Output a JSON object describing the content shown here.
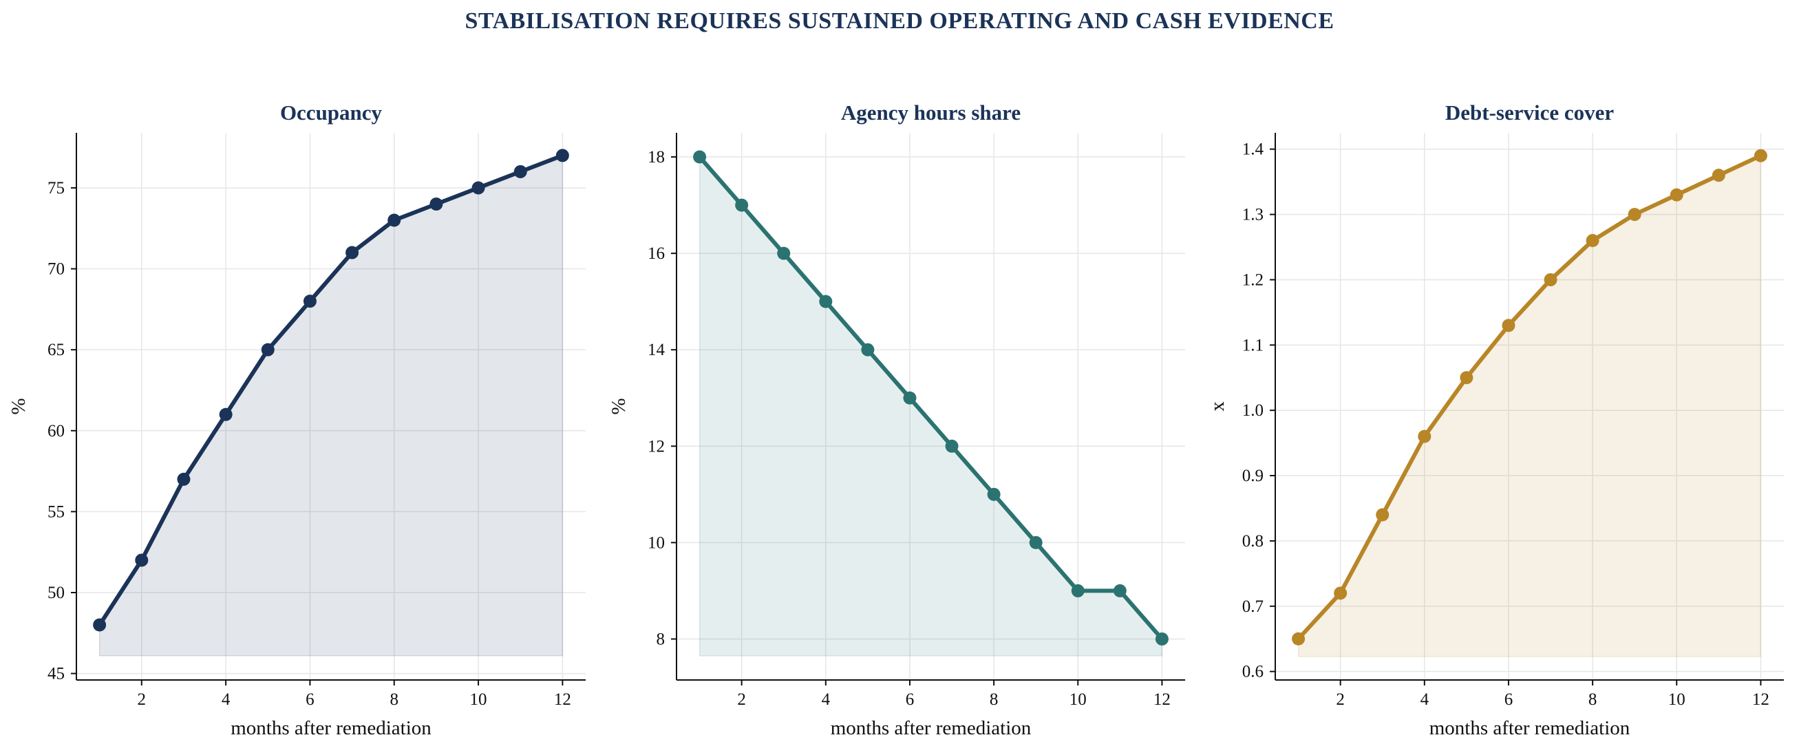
{
  "suptitle": "STABILISATION REQUIRES SUSTAINED OPERATING AND CASH EVIDENCE",
  "colors": {
    "title": "#1b3358",
    "grid": "#e6e6e6",
    "axis": "#111111"
  },
  "chart_data": [
    {
      "type": "area",
      "title": "Occupancy",
      "xlabel": "months after remediation",
      "ylabel": "%",
      "color": "#1b3358",
      "x": [
        1,
        2,
        3,
        4,
        5,
        6,
        7,
        8,
        9,
        10,
        11,
        12
      ],
      "values": [
        48,
        52,
        57,
        61,
        65,
        68,
        71,
        73,
        74,
        75,
        76,
        77
      ],
      "fill_baseline": 46.1,
      "xlim": [
        0.45,
        12.55
      ],
      "ylim": [
        44.6,
        78.4
      ],
      "xticks": [
        2,
        4,
        6,
        8,
        10,
        12
      ],
      "yticks": [
        45,
        50,
        55,
        60,
        65,
        70,
        75
      ],
      "ytick_labels": [
        "45",
        "50",
        "55",
        "60",
        "65",
        "70",
        "75"
      ],
      "grid": true
    },
    {
      "type": "area",
      "title": "Agency hours share",
      "xlabel": "months after remediation",
      "ylabel": "%",
      "color": "#2b7371",
      "x": [
        1,
        2,
        3,
        4,
        5,
        6,
        7,
        8,
        9,
        10,
        11,
        12
      ],
      "values": [
        18,
        17,
        16,
        15,
        14,
        13,
        12,
        11,
        10,
        9,
        9,
        8
      ],
      "fill_baseline": 7.65,
      "xlim": [
        0.45,
        12.55
      ],
      "ylim": [
        7.15,
        18.5
      ],
      "xticks": [
        2,
        4,
        6,
        8,
        10,
        12
      ],
      "yticks": [
        8,
        10,
        12,
        14,
        16,
        18
      ],
      "ytick_labels": [
        "8",
        "10",
        "12",
        "14",
        "16",
        "18"
      ],
      "grid": true
    },
    {
      "type": "area",
      "title": "Debt-service cover",
      "xlabel": "months after remediation",
      "ylabel": "x",
      "color": "#b88627",
      "x": [
        1,
        2,
        3,
        4,
        5,
        6,
        7,
        8,
        9,
        10,
        11,
        12
      ],
      "values": [
        0.65,
        0.72,
        0.84,
        0.96,
        1.05,
        1.13,
        1.2,
        1.26,
        1.3,
        1.33,
        1.36,
        1.39
      ],
      "fill_baseline": 0.623,
      "xlim": [
        0.45,
        12.55
      ],
      "ylim": [
        0.587,
        1.425
      ],
      "xticks": [
        2,
        4,
        6,
        8,
        10,
        12
      ],
      "yticks": [
        0.6,
        0.7,
        0.8,
        0.9,
        1.0,
        1.1,
        1.2,
        1.3,
        1.4
      ],
      "ytick_labels": [
        "0.6",
        "0.7",
        "0.8",
        "0.9",
        "1.0",
        "1.1",
        "1.2",
        "1.3",
        "1.4"
      ],
      "grid": true
    }
  ]
}
